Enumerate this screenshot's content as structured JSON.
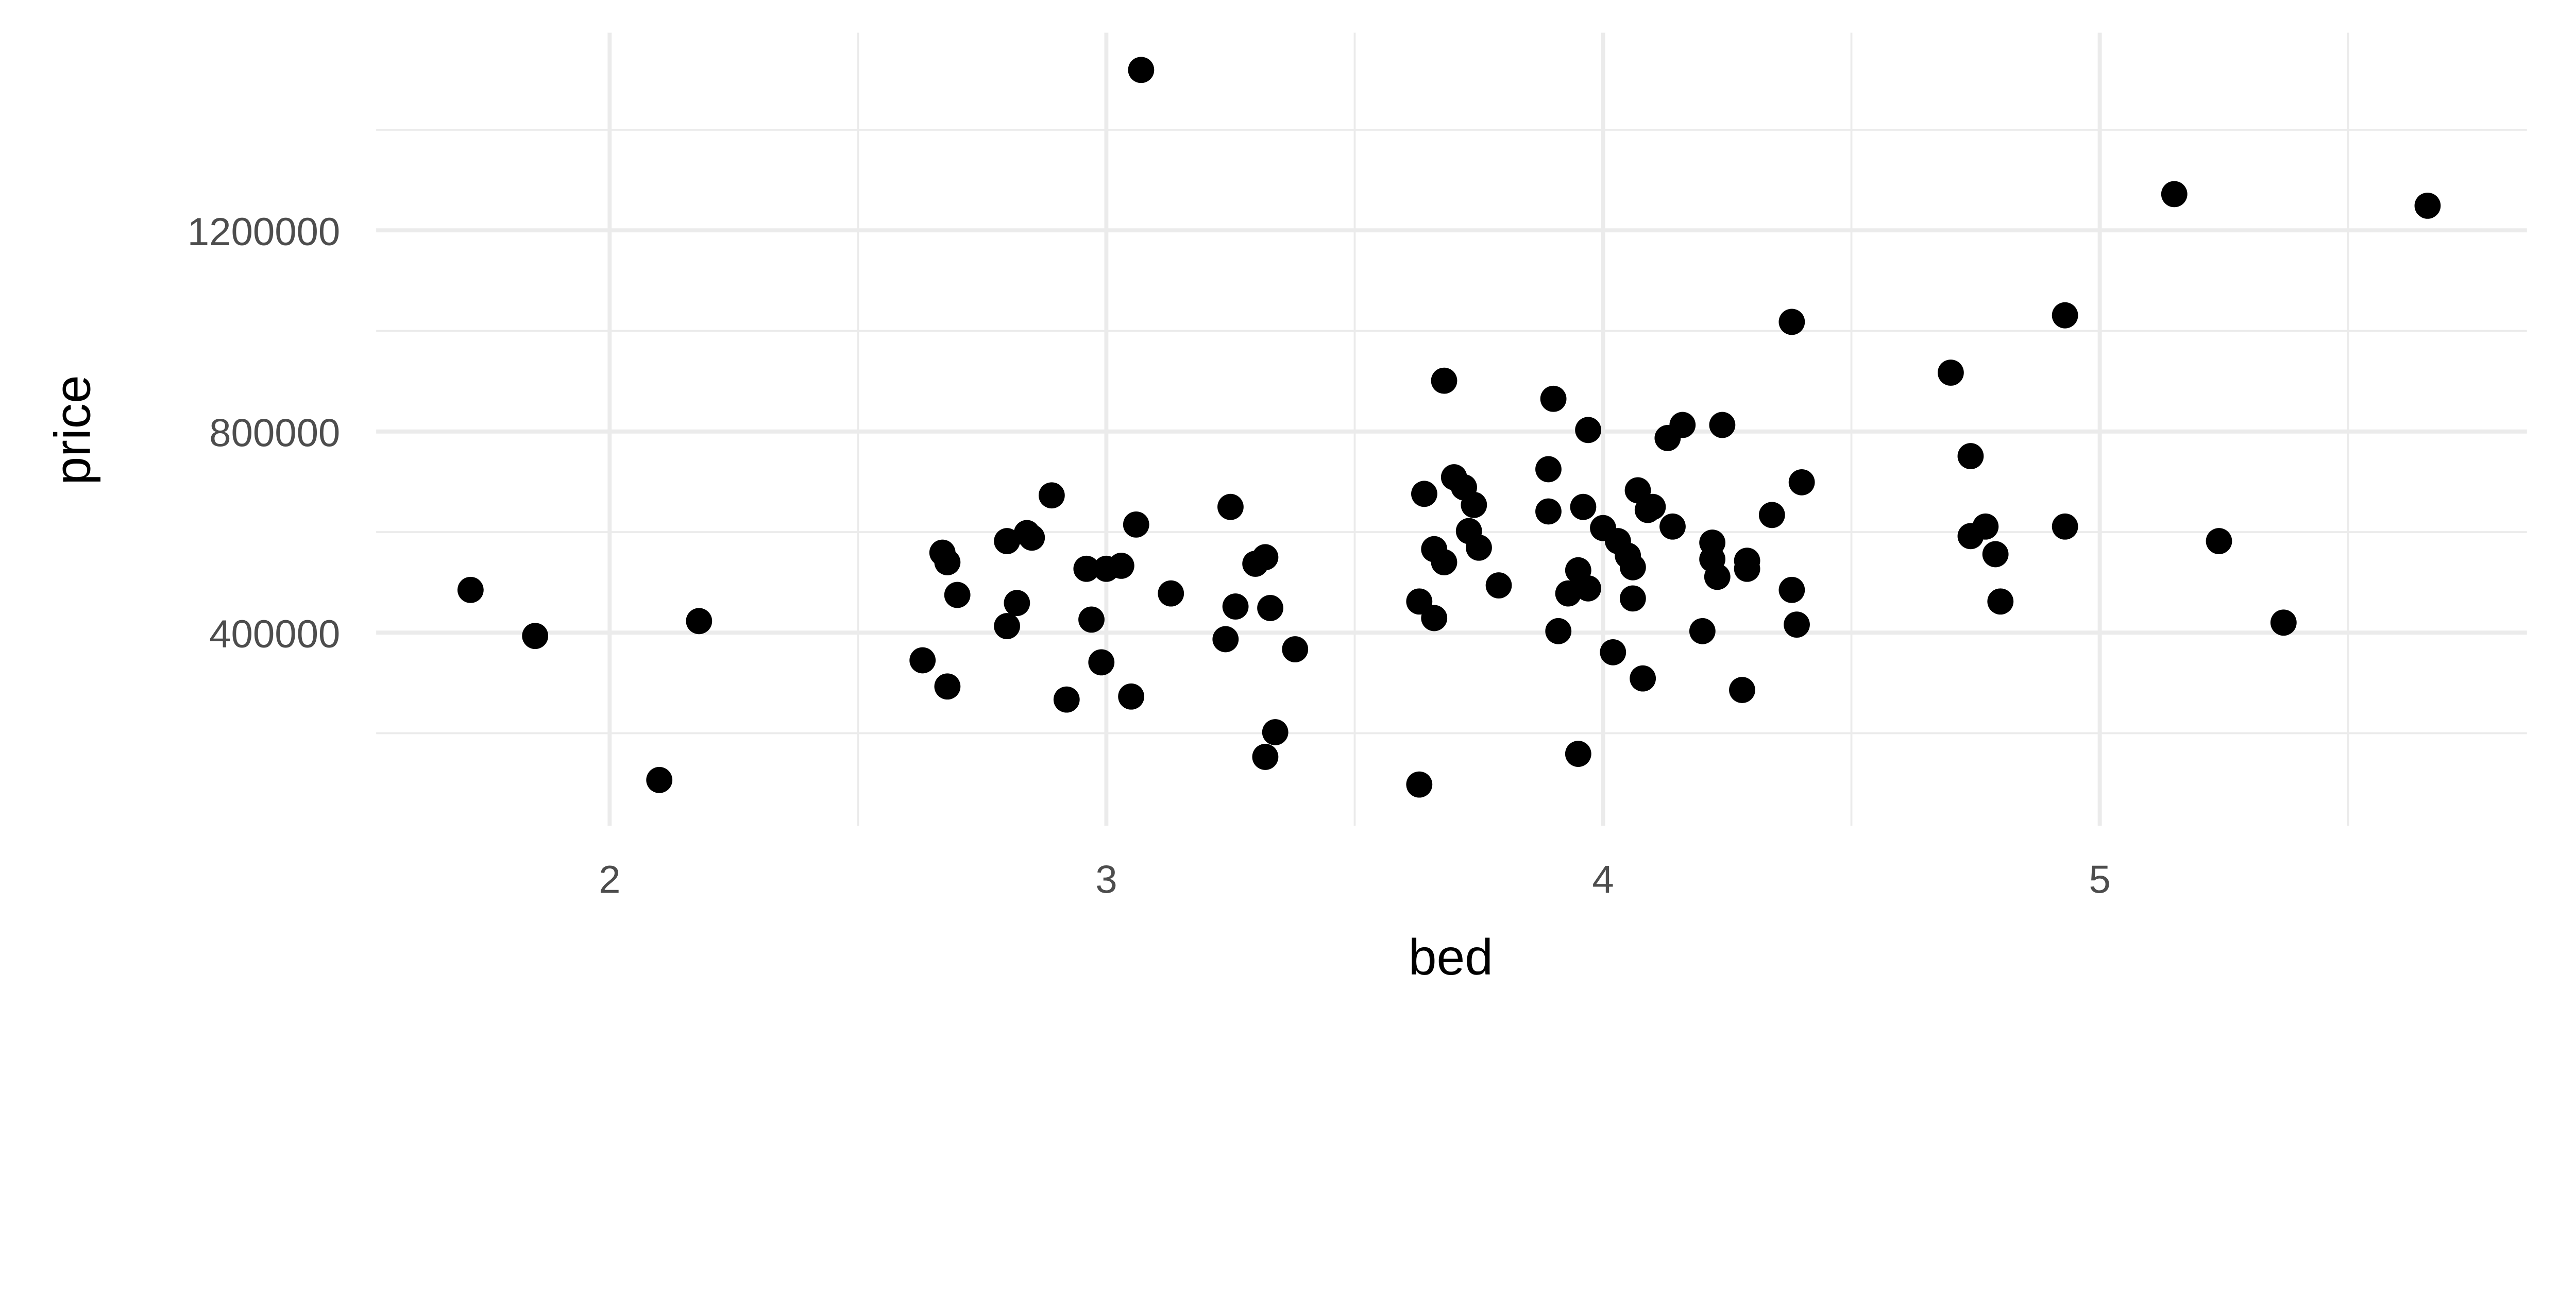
{
  "chart_data": {
    "type": "scatter",
    "xlabel": "bed",
    "ylabel": "price",
    "xlim": [
      1.53,
      5.86
    ],
    "ylim": [
      16000,
      1593000
    ],
    "x_ticks": [
      2,
      3,
      4,
      5
    ],
    "x_tick_labels": [
      "2",
      "3",
      "4",
      "5"
    ],
    "y_ticks": [
      400000,
      800000,
      1200000
    ],
    "y_tick_labels": [
      "400000",
      "800000",
      "1200000"
    ],
    "grid": true,
    "point_color": "#000000",
    "grid_color": "#ebebeb",
    "points": [
      [
        1.72,
        485000
      ],
      [
        1.85,
        393500
      ],
      [
        2.1,
        107000
      ],
      [
        2.18,
        423000
      ],
      [
        3.07,
        1519000
      ],
      [
        2.63,
        345000
      ],
      [
        2.67,
        559000
      ],
      [
        2.68,
        540000
      ],
      [
        2.68,
        293000
      ],
      [
        2.7,
        475000
      ],
      [
        2.8,
        582000
      ],
      [
        2.8,
        413000
      ],
      [
        2.82,
        459000
      ],
      [
        2.84,
        598000
      ],
      [
        2.85,
        589000
      ],
      [
        2.89,
        673000
      ],
      [
        2.92,
        267000
      ],
      [
        2.96,
        527000
      ],
      [
        2.97,
        426000
      ],
      [
        2.99,
        341000
      ],
      [
        3.0,
        527000
      ],
      [
        3.03,
        533000
      ],
      [
        3.05,
        273000
      ],
      [
        3.06,
        615000
      ],
      [
        3.13,
        478000
      ],
      [
        3.24,
        387000
      ],
      [
        3.25,
        650000
      ],
      [
        3.26,
        452000
      ],
      [
        3.3,
        537000
      ],
      [
        3.32,
        550000
      ],
      [
        3.32,
        153000
      ],
      [
        3.33,
        449000
      ],
      [
        3.34,
        202000
      ],
      [
        3.38,
        367000
      ],
      [
        3.63,
        98000
      ],
      [
        3.63,
        462000
      ],
      [
        3.64,
        676000
      ],
      [
        3.66,
        429000
      ],
      [
        3.66,
        566000
      ],
      [
        3.68,
        901000
      ],
      [
        3.68,
        540000
      ],
      [
        3.7,
        709000
      ],
      [
        3.72,
        689000
      ],
      [
        3.74,
        654000
      ],
      [
        3.73,
        602000
      ],
      [
        3.75,
        569000
      ],
      [
        3.79,
        494000
      ],
      [
        3.89,
        641000
      ],
      [
        3.89,
        725000
      ],
      [
        3.9,
        865000
      ],
      [
        3.91,
        403000
      ],
      [
        3.93,
        478000
      ],
      [
        3.95,
        524000
      ],
      [
        3.95,
        159000
      ],
      [
        3.96,
        650000
      ],
      [
        3.97,
        803000
      ],
      [
        3.97,
        488000
      ],
      [
        4.0,
        608000
      ],
      [
        4.02,
        361000
      ],
      [
        4.03,
        582000
      ],
      [
        4.05,
        553000
      ],
      [
        4.06,
        468000
      ],
      [
        4.06,
        530000
      ],
      [
        4.07,
        683000
      ],
      [
        4.08,
        309000
      ],
      [
        4.09,
        644000
      ],
      [
        4.1,
        650000
      ],
      [
        4.13,
        787000
      ],
      [
        4.14,
        611000
      ],
      [
        4.16,
        813000
      ],
      [
        4.2,
        403000
      ],
      [
        4.22,
        579000
      ],
      [
        4.22,
        546000
      ],
      [
        4.23,
        511000
      ],
      [
        4.24,
        813000
      ],
      [
        4.28,
        286000
      ],
      [
        4.29,
        543000
      ],
      [
        4.29,
        527000
      ],
      [
        4.34,
        634000
      ],
      [
        4.38,
        1018000
      ],
      [
        4.38,
        485000
      ],
      [
        4.39,
        416000
      ],
      [
        4.4,
        699000
      ],
      [
        4.7,
        917000
      ],
      [
        4.74,
        751000
      ],
      [
        4.74,
        592000
      ],
      [
        4.77,
        611000
      ],
      [
        4.79,
        556000
      ],
      [
        4.8,
        462000
      ],
      [
        4.93,
        1031000
      ],
      [
        4.93,
        611000
      ],
      [
        5.15,
        1272000
      ],
      [
        5.24,
        582000
      ],
      [
        5.37,
        420000
      ],
      [
        5.66,
        1249000
      ]
    ]
  }
}
